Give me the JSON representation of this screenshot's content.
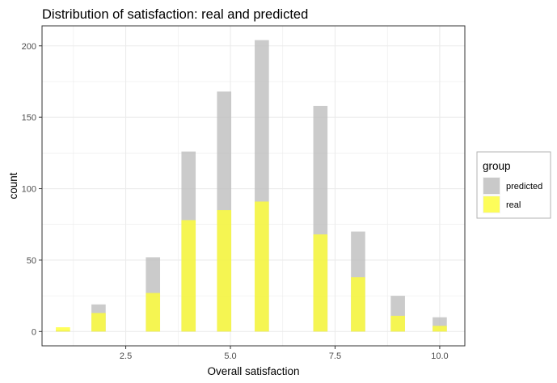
{
  "chart_data": {
    "type": "bar",
    "title": "Distribution of satisfaction: real and predicted",
    "xlabel": "Overall satisfaction",
    "ylabel": "count",
    "xlim": [
      0.5,
      10.6
    ],
    "ylim": [
      -10,
      214
    ],
    "x_ticks": [
      2.5,
      5.0,
      7.5,
      10.0
    ],
    "x_tick_labels": [
      "2.5",
      "5.0",
      "7.5",
      "10.0"
    ],
    "y_ticks": [
      0,
      50,
      100,
      150,
      200
    ],
    "y_tick_labels": [
      "0",
      "50",
      "100",
      "150",
      "200"
    ],
    "grid": true,
    "legend_title": "group",
    "legend_position": "right",
    "overlay": true,
    "x": [
      1,
      1.85,
      3.15,
      4,
      4.85,
      5.75,
      7.15,
      8.05,
      9,
      10
    ],
    "series": [
      {
        "name": "predicted",
        "color": "#bebebe",
        "values": [
          1,
          19,
          52,
          126,
          168,
          204,
          158,
          70,
          25,
          10
        ]
      },
      {
        "name": "real",
        "color": "#ffff33",
        "values": [
          3,
          13,
          27,
          78,
          85,
          91,
          68,
          38,
          11,
          4
        ]
      }
    ]
  }
}
